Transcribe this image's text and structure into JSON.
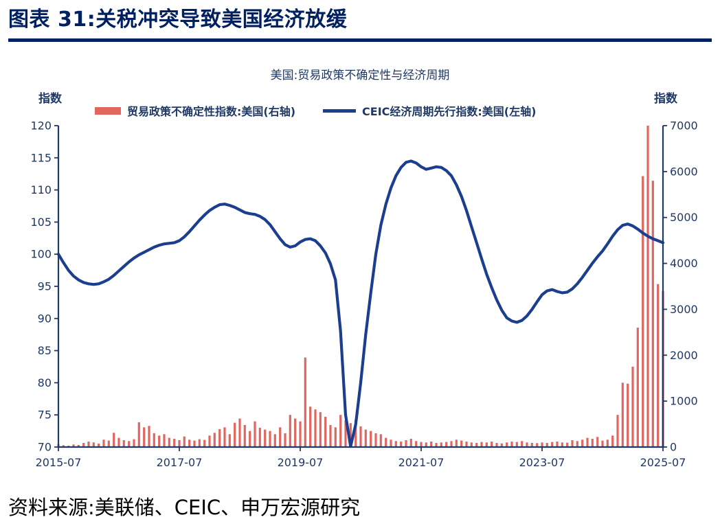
{
  "page": {
    "title": "图表 31:关税冲突导致美国经济放缓",
    "source": "资料来源:美联储、CEIC、申万宏源研究"
  },
  "colors": {
    "title": "#002060",
    "text_navy": "#1f3864",
    "axis": "#1f3864",
    "bar": "#e0665f",
    "line": "#1c3e8f"
  },
  "chart_data": {
    "type": "combo",
    "title": "美国:贸易政策不确定性与经济周期",
    "left_axis": {
      "label": "指数",
      "min": 70,
      "max": 120,
      "ticks": [
        70,
        75,
        80,
        85,
        90,
        95,
        100,
        105,
        110,
        115,
        120
      ]
    },
    "right_axis": {
      "label": "指数",
      "min": 0,
      "max": 7000,
      "ticks": [
        0,
        1000,
        2000,
        3000,
        4000,
        5000,
        6000,
        7000
      ]
    },
    "x": {
      "start": "2015-07",
      "months": 121,
      "tick_indices": [
        0,
        24,
        48,
        72,
        96,
        120
      ],
      "tick_labels": [
        "2015-07",
        "2017-07",
        "2019-07",
        "2021-07",
        "2023-07",
        "2025-07"
      ]
    },
    "series": [
      {
        "name": "贸易政策不确定性指数:美国(右轴)",
        "type": "bar",
        "axis": "right",
        "color": "#e0665f",
        "values": [
          60,
          40,
          30,
          55,
          45,
          90,
          120,
          100,
          75,
          160,
          140,
          310,
          200,
          150,
          130,
          170,
          540,
          430,
          460,
          300,
          250,
          280,
          200,
          180,
          150,
          230,
          160,
          140,
          170,
          155,
          250,
          310,
          390,
          430,
          280,
          530,
          620,
          480,
          350,
          560,
          420,
          380,
          350,
          280,
          430,
          300,
          700,
          620,
          560,
          1950,
          880,
          820,
          760,
          660,
          480,
          430,
          700,
          580,
          520,
          600,
          450,
          380,
          350,
          300,
          280,
          200,
          160,
          130,
          120,
          150,
          180,
          130,
          110,
          100,
          120,
          90,
          100,
          110,
          130,
          160,
          140,
          120,
          100,
          90,
          110,
          100,
          120,
          90,
          80,
          100,
          120,
          110,
          130,
          100,
          90,
          85,
          100,
          90,
          110,
          120,
          100,
          95,
          150,
          130,
          160,
          200,
          180,
          220,
          140,
          160,
          250,
          700,
          1400,
          1380,
          1750,
          2600,
          5900,
          7050,
          5800,
          3550,
          3400
        ]
      },
      {
        "name": "CEIC经济周期先行指数:美国(左轴)",
        "type": "line",
        "axis": "left",
        "color": "#1c3e8f",
        "values": [
          100.0,
          98.7,
          97.5,
          96.6,
          96.0,
          95.6,
          95.4,
          95.3,
          95.4,
          95.7,
          96.1,
          96.7,
          97.4,
          98.1,
          98.8,
          99.4,
          99.9,
          100.3,
          100.7,
          101.1,
          101.4,
          101.6,
          101.7,
          101.8,
          102.1,
          102.7,
          103.5,
          104.4,
          105.3,
          106.1,
          106.8,
          107.3,
          107.7,
          107.8,
          107.6,
          107.3,
          106.9,
          106.5,
          106.3,
          106.2,
          105.9,
          105.4,
          104.6,
          103.5,
          102.4,
          101.5,
          101.1,
          101.3,
          101.9,
          102.3,
          102.4,
          102.1,
          101.3,
          100.2,
          98.5,
          96.0,
          88.0,
          75.0,
          70.1,
          73.5,
          80.0,
          87.5,
          94.0,
          100.0,
          104.5,
          107.8,
          110.3,
          112.2,
          113.5,
          114.3,
          114.5,
          114.2,
          113.6,
          113.2,
          113.4,
          113.6,
          113.5,
          113.0,
          112.2,
          110.8,
          109.0,
          106.8,
          104.3,
          101.8,
          99.3,
          96.9,
          94.8,
          92.9,
          91.3,
          90.1,
          89.6,
          89.4,
          89.7,
          90.4,
          91.4,
          92.6,
          93.7,
          94.3,
          94.5,
          94.2,
          94.0,
          94.1,
          94.6,
          95.4,
          96.4,
          97.5,
          98.6,
          99.6,
          100.5,
          101.6,
          102.8,
          103.8,
          104.5,
          104.7,
          104.4,
          103.9,
          103.3,
          102.8,
          102.4,
          102.1,
          101.8
        ]
      }
    ]
  }
}
